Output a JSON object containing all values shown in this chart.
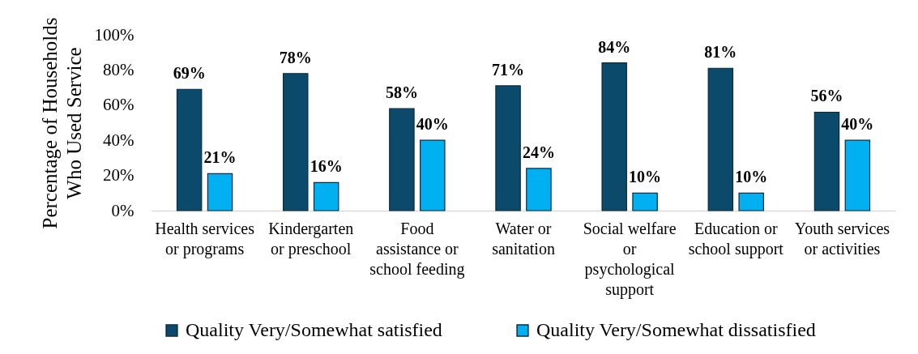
{
  "chart_data": {
    "type": "bar",
    "ylabel": "Percentage of Households Who Used Service",
    "categories": [
      "Health services or programs",
      "Kindergarten or preschool",
      "Food assistance or school feeding",
      "Water or sanitation",
      "Social welfare or psychological support",
      "Education or school support",
      "Youth services or activities"
    ],
    "series": [
      {
        "name": "Quality Very/Somewhat satisfied",
        "color": "#0b4a6a",
        "values": [
          69,
          78,
          58,
          71,
          84,
          81,
          56
        ],
        "value_labels": [
          "69%",
          "78%",
          "58%",
          "71%",
          "84%",
          "81%",
          "56%"
        ]
      },
      {
        "name": "Quality Very/Somewhat dissatisfied",
        "color": "#00b0f0",
        "values": [
          21,
          16,
          40,
          24,
          10,
          10,
          40
        ],
        "value_labels": [
          "21%",
          "16%",
          "40%",
          "24%",
          "10%",
          "10%",
          "40%"
        ]
      }
    ],
    "ylim": [
      0,
      100
    ],
    "yticks": [
      {
        "value": 0,
        "label": "0%"
      },
      {
        "value": 20,
        "label": "20%"
      },
      {
        "value": 40,
        "label": "40%"
      },
      {
        "value": 60,
        "label": "60%"
      },
      {
        "value": 80,
        "label": "80%"
      },
      {
        "value": 100,
        "label": "100%"
      }
    ],
    "grid": false,
    "legend": "bottom"
  }
}
